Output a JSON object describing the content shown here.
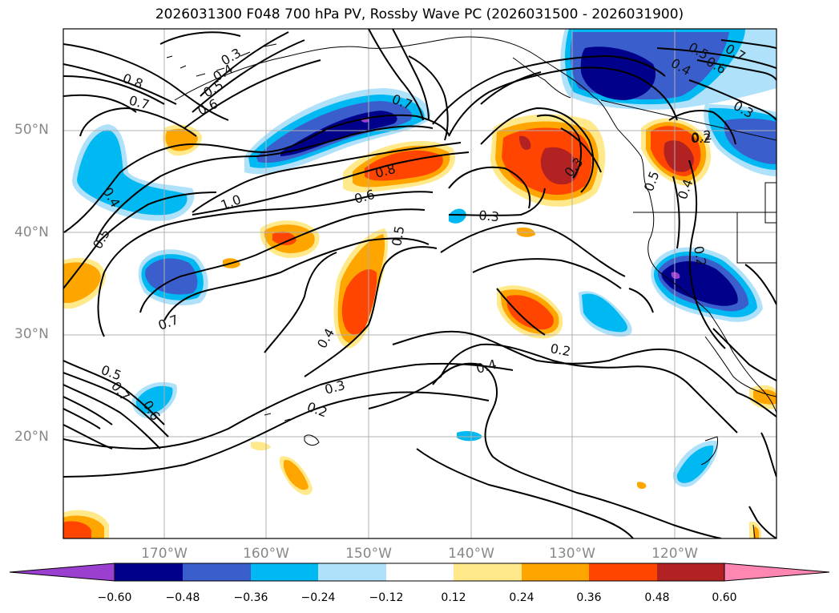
{
  "title": "2026031300 F048 700 hPa PV, Rossby Wave PC (2026031500 - 2026031900)",
  "lat_labels": [
    "50°N",
    "40°N",
    "30°N",
    "20°N"
  ],
  "lon_labels": [
    "170°W",
    "160°W",
    "150°W",
    "140°W",
    "130°W",
    "120°W"
  ],
  "colorbar": {
    "ticks": [
      "−0.60",
      "−0.48",
      "−0.36",
      "−0.24",
      "−0.12",
      "0.12",
      "0.24",
      "0.36",
      "0.48",
      "0.60"
    ],
    "colors": [
      "#9b3fd0",
      "#00008b",
      "#3a5fcd",
      "#00b9f2",
      "#afe1fa",
      "#ffffff",
      "#ffe98a",
      "#ffa500",
      "#ff4500",
      "#b22222",
      "#ff85b3"
    ]
  },
  "contour_labels": [
    "0.8",
    "0.7",
    "0.3",
    "0.4",
    "0.5",
    "0.6",
    "1.0",
    "0.4",
    "0.5",
    "0.7",
    "0.6",
    "0.8",
    "0.7",
    "0.5",
    "0.3",
    "0.4",
    "0.3",
    "0.2",
    "0.5",
    "0.7",
    "0.6",
    "0.4",
    "0.3",
    "0.2",
    "0.2",
    "0.4",
    "0.5",
    "0.6",
    "0.7",
    "0.3",
    "0.2",
    "0.5",
    "0.4",
    "0.2"
  ]
}
